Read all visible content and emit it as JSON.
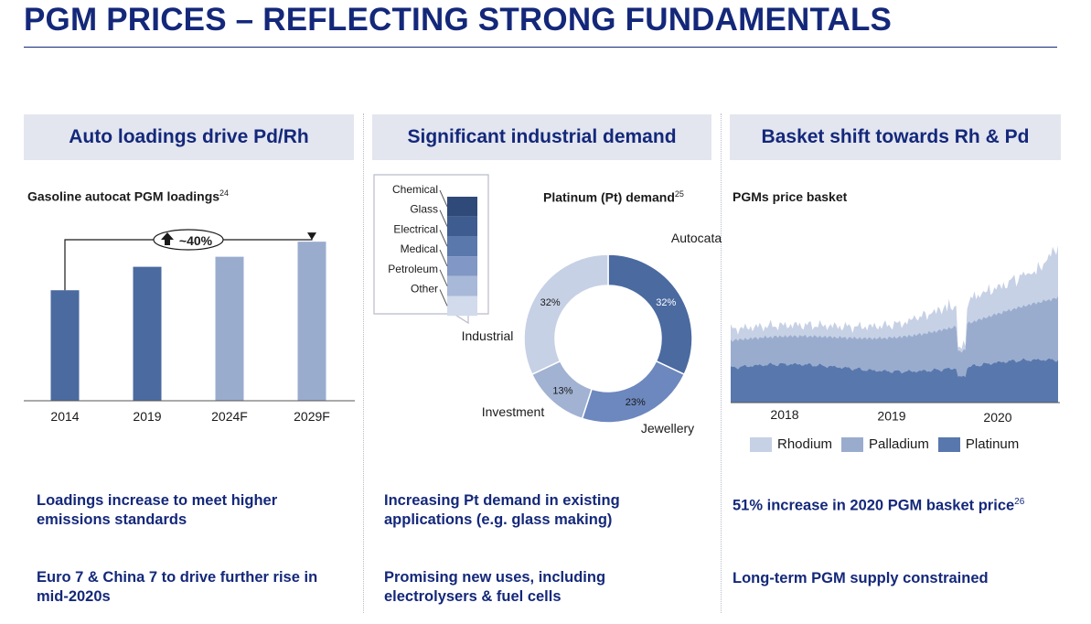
{
  "page": {
    "title": "PGM PRICES – REFLECTING STRONG FUNDAMENTALS"
  },
  "panels": [
    {
      "header": "Auto loadings drive Pd/Rh",
      "subtitle": "Gasoline autocat PGM loadings",
      "footnote": "24",
      "messages": [
        "Loadings increase to meet higher emissions standards",
        "Euro 7 & China 7 to drive further rise in mid-2020s"
      ]
    },
    {
      "header": "Significant industrial demand",
      "subtitle": "Platinum (Pt) demand",
      "footnote": "25",
      "messages": [
        "Increasing Pt demand in existing applications (e.g. glass making)",
        "Promising new uses, including electrolysers & fuel cells"
      ]
    },
    {
      "header": "Basket shift towards Rh & Pd",
      "subtitle": "PGMs price basket",
      "footnote": "",
      "messages": [
        "51% increase in 2020 PGM basket price",
        "Long-term PGM supply constrained"
      ],
      "message_footnote": "26"
    }
  ],
  "chart_data": [
    {
      "type": "bar",
      "categories": [
        "2014",
        "2019",
        "2024F",
        "2029F"
      ],
      "values": [
        3.3,
        4.0,
        4.3,
        4.75
      ],
      "colors": [
        "#4a6aa0",
        "#4a6aa0",
        "#9aacce",
        "#9aacce"
      ],
      "ylim": [
        0,
        5
      ],
      "annotation": "~40%",
      "annotation_icon": "up-arrow-icon",
      "grid": false
    },
    {
      "type": "pie",
      "style": "donut",
      "labels": [
        "Autocatalyst",
        "Jewellery",
        "Investment",
        "Industrial"
      ],
      "values": [
        32,
        23,
        13,
        32
      ],
      "value_labels": [
        "32%",
        "23%",
        "13%",
        "32%"
      ],
      "colors": [
        "#4a6aa0",
        "#6c88be",
        "#a1b2d2",
        "#c7d1e5"
      ],
      "industrial_breakdown": {
        "labels": [
          "Chemical",
          "Glass",
          "Electrical",
          "Medical",
          "Petroleum",
          "Other"
        ],
        "colors": [
          "#2f4a78",
          "#3f5c90",
          "#5a78ac",
          "#8197c5",
          "#a8b8d8",
          "#d2dbec"
        ]
      }
    },
    {
      "type": "area",
      "stacked": true,
      "x_ticks": [
        "2018",
        "2019",
        "2020"
      ],
      "series": [
        {
          "name": "Rhodium",
          "color": "#c7d1e5"
        },
        {
          "name": "Palladium",
          "color": "#9aacce"
        },
        {
          "name": "Platinum",
          "color": "#5878ad"
        }
      ],
      "legend_position": "bottom",
      "grid": false
    }
  ]
}
